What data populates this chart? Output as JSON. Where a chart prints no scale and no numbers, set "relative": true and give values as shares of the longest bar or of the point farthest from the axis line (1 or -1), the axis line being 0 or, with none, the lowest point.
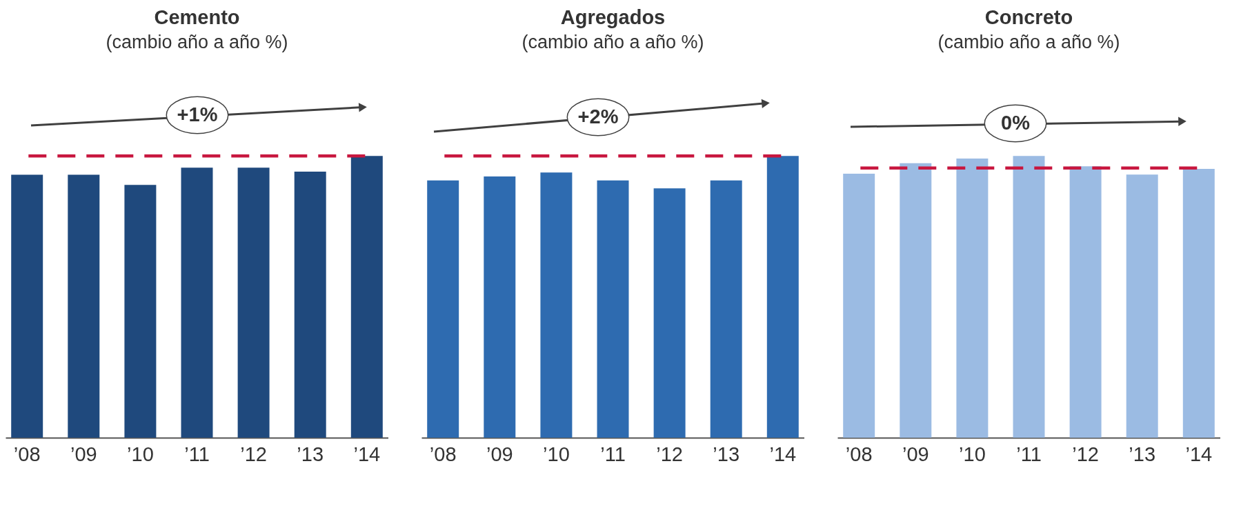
{
  "chart_data": [
    {
      "type": "bar",
      "title": "Cemento",
      "subtitle": "(cambio año a año %)",
      "categories": [
        "’08",
        "’09",
        "’10",
        "’11",
        "’12",
        "’13",
        "’14"
      ],
      "values": [
        0.933,
        0.933,
        0.897,
        0.958,
        0.958,
        0.944,
        1
      ],
      "color": "#1f497d",
      "relative": true,
      "ref_lines": [
        {
          "axis": "y",
          "value": 1,
          "color": "#c8173f",
          "line_style": "dashed"
        }
      ],
      "annotations": [
        "+1%"
      ]
    },
    {
      "type": "bar",
      "title": "Agregados",
      "subtitle": "(cambio año a año %)",
      "categories": [
        "’08",
        "’09",
        "’10",
        "’11",
        "’12",
        "’13",
        "’14"
      ],
      "values": [
        0.913,
        0.927,
        0.941,
        0.913,
        0.885,
        0.913,
        1
      ],
      "color": "#2e6bb0",
      "relative": true,
      "ref_lines": [
        {
          "axis": "y",
          "value": 1,
          "color": "#c8173f",
          "line_style": "dashed"
        }
      ],
      "annotations": [
        "+2%"
      ]
    },
    {
      "type": "bar",
      "title": "Concreto",
      "subtitle": "(cambio año a año %)",
      "categories": [
        "’08",
        "’09",
        "’10",
        "’11",
        "’12",
        "’13",
        "’14"
      ],
      "values": [
        0.937,
        0.974,
        0.991,
        1,
        0.963,
        0.934,
        0.954
      ],
      "color": "#9bbbe3",
      "relative": true,
      "ref_lines": [
        {
          "axis": "y",
          "value": 0.957,
          "color": "#c8173f",
          "line_style": "dashed"
        }
      ],
      "annotations": [
        "0%"
      ]
    }
  ]
}
